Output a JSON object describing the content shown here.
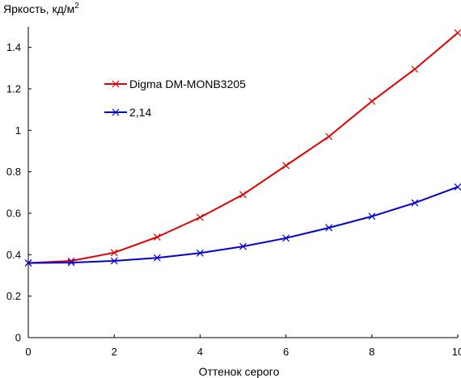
{
  "chart_data": {
    "type": "line",
    "ylabel": "Яркость, кд/м",
    "ylabel_sup": "2",
    "xlabel": "Оттенок серого",
    "xlim": [
      0,
      10
    ],
    "ylim": [
      0,
      1.5
    ],
    "xticks": [
      0,
      2,
      4,
      6,
      8,
      10
    ],
    "yticks": [
      0,
      0.2,
      0.4,
      0.6,
      0.8,
      1,
      1.2,
      1.4
    ],
    "grid": false,
    "legend_position": "top-left",
    "series": [
      {
        "name": "Digma DM-MONB3205",
        "color": "#e00000",
        "marker": "x",
        "x": [
          0,
          1,
          2,
          3,
          4,
          5,
          6,
          7,
          8,
          9,
          10
        ],
        "y": [
          0.36,
          0.37,
          0.41,
          0.485,
          0.58,
          0.69,
          0.83,
          0.97,
          1.14,
          1.295,
          1.47
        ]
      },
      {
        "name": "2,14",
        "color": "#0000d0",
        "marker": "x",
        "x": [
          0,
          1,
          2,
          3,
          4,
          5,
          6,
          7,
          8,
          9,
          10
        ],
        "y": [
          0.36,
          0.362,
          0.37,
          0.385,
          0.408,
          0.44,
          0.48,
          0.53,
          0.585,
          0.65,
          0.727
        ]
      }
    ]
  }
}
